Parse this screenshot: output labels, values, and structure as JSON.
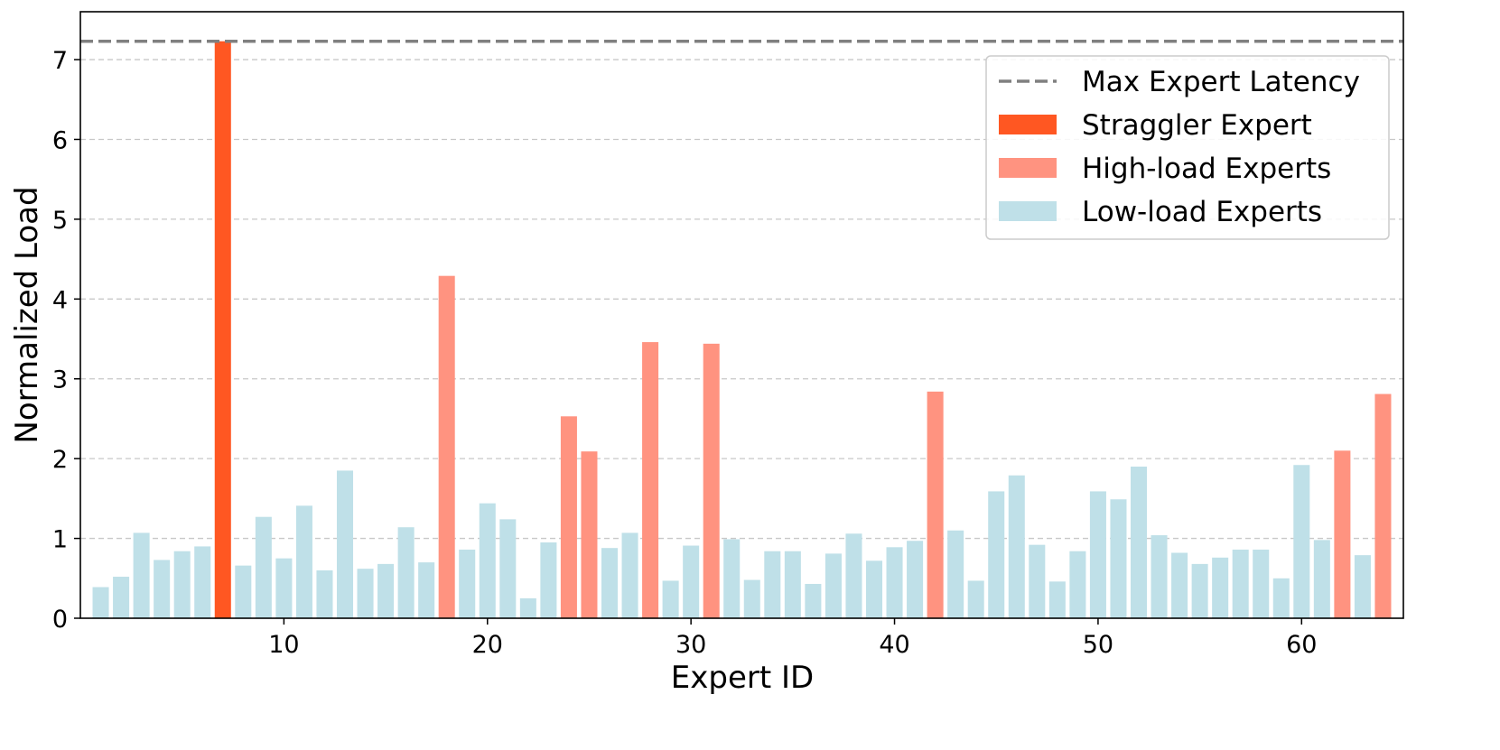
{
  "chart_data": {
    "type": "bar",
    "xlabel": "Expert ID",
    "ylabel": "Normalized Load",
    "xlim": [
      0,
      65
    ],
    "ylim": [
      0,
      7.6
    ],
    "xticks": [
      10,
      20,
      30,
      40,
      50,
      60
    ],
    "yticks": [
      0,
      1,
      2,
      3,
      4,
      5,
      6,
      7
    ],
    "grid": "horizontal dashed",
    "legend_position": "upper right",
    "max_latency": 7.23,
    "colors": {
      "straggler": "#ff5722",
      "high": "#ff9380",
      "low": "#bfe0e8",
      "max_line": "#808080"
    },
    "legend": [
      {
        "label": "Max Expert Latency",
        "kind": "line",
        "group": "max"
      },
      {
        "label": "Straggler Expert",
        "kind": "bar",
        "group": "straggler"
      },
      {
        "label": "High-load Experts",
        "kind": "bar",
        "group": "high"
      },
      {
        "label": "Low-load Experts",
        "kind": "bar",
        "group": "low"
      }
    ],
    "bars": [
      {
        "x": 1,
        "value": 0.39,
        "group": "low"
      },
      {
        "x": 2,
        "value": 0.52,
        "group": "low"
      },
      {
        "x": 3,
        "value": 1.07,
        "group": "low"
      },
      {
        "x": 4,
        "value": 0.73,
        "group": "low"
      },
      {
        "x": 5,
        "value": 0.84,
        "group": "low"
      },
      {
        "x": 6,
        "value": 0.9,
        "group": "low"
      },
      {
        "x": 7,
        "value": 7.23,
        "group": "straggler"
      },
      {
        "x": 8,
        "value": 0.66,
        "group": "low"
      },
      {
        "x": 9,
        "value": 1.27,
        "group": "low"
      },
      {
        "x": 10,
        "value": 0.75,
        "group": "low"
      },
      {
        "x": 11,
        "value": 1.41,
        "group": "low"
      },
      {
        "x": 12,
        "value": 0.6,
        "group": "low"
      },
      {
        "x": 13,
        "value": 1.85,
        "group": "low"
      },
      {
        "x": 14,
        "value": 0.62,
        "group": "low"
      },
      {
        "x": 15,
        "value": 0.68,
        "group": "low"
      },
      {
        "x": 16,
        "value": 1.14,
        "group": "low"
      },
      {
        "x": 17,
        "value": 0.7,
        "group": "low"
      },
      {
        "x": 18,
        "value": 4.29,
        "group": "high"
      },
      {
        "x": 19,
        "value": 0.86,
        "group": "low"
      },
      {
        "x": 20,
        "value": 1.44,
        "group": "low"
      },
      {
        "x": 21,
        "value": 1.24,
        "group": "low"
      },
      {
        "x": 22,
        "value": 0.25,
        "group": "low"
      },
      {
        "x": 23,
        "value": 0.95,
        "group": "low"
      },
      {
        "x": 24,
        "value": 2.53,
        "group": "high"
      },
      {
        "x": 25,
        "value": 2.09,
        "group": "high"
      },
      {
        "x": 26,
        "value": 0.88,
        "group": "low"
      },
      {
        "x": 27,
        "value": 1.07,
        "group": "low"
      },
      {
        "x": 28,
        "value": 3.46,
        "group": "high"
      },
      {
        "x": 29,
        "value": 0.47,
        "group": "low"
      },
      {
        "x": 30,
        "value": 0.91,
        "group": "low"
      },
      {
        "x": 31,
        "value": 3.44,
        "group": "high"
      },
      {
        "x": 32,
        "value": 0.99,
        "group": "low"
      },
      {
        "x": 33,
        "value": 0.48,
        "group": "low"
      },
      {
        "x": 34,
        "value": 0.84,
        "group": "low"
      },
      {
        "x": 35,
        "value": 0.84,
        "group": "low"
      },
      {
        "x": 36,
        "value": 0.43,
        "group": "low"
      },
      {
        "x": 37,
        "value": 0.81,
        "group": "low"
      },
      {
        "x": 38,
        "value": 1.06,
        "group": "low"
      },
      {
        "x": 39,
        "value": 0.72,
        "group": "low"
      },
      {
        "x": 40,
        "value": 0.89,
        "group": "low"
      },
      {
        "x": 41,
        "value": 0.97,
        "group": "low"
      },
      {
        "x": 42,
        "value": 2.84,
        "group": "high"
      },
      {
        "x": 43,
        "value": 1.1,
        "group": "low"
      },
      {
        "x": 44,
        "value": 0.47,
        "group": "low"
      },
      {
        "x": 45,
        "value": 1.59,
        "group": "low"
      },
      {
        "x": 46,
        "value": 1.79,
        "group": "low"
      },
      {
        "x": 47,
        "value": 0.92,
        "group": "low"
      },
      {
        "x": 48,
        "value": 0.46,
        "group": "low"
      },
      {
        "x": 49,
        "value": 0.84,
        "group": "low"
      },
      {
        "x": 50,
        "value": 1.59,
        "group": "low"
      },
      {
        "x": 51,
        "value": 1.49,
        "group": "low"
      },
      {
        "x": 52,
        "value": 1.9,
        "group": "low"
      },
      {
        "x": 53,
        "value": 1.04,
        "group": "low"
      },
      {
        "x": 54,
        "value": 0.82,
        "group": "low"
      },
      {
        "x": 55,
        "value": 0.68,
        "group": "low"
      },
      {
        "x": 56,
        "value": 0.76,
        "group": "low"
      },
      {
        "x": 57,
        "value": 0.86,
        "group": "low"
      },
      {
        "x": 58,
        "value": 0.86,
        "group": "low"
      },
      {
        "x": 59,
        "value": 0.5,
        "group": "low"
      },
      {
        "x": 60,
        "value": 1.92,
        "group": "low"
      },
      {
        "x": 61,
        "value": 0.98,
        "group": "low"
      },
      {
        "x": 62,
        "value": 2.1,
        "group": "high"
      },
      {
        "x": 63,
        "value": 0.79,
        "group": "low"
      },
      {
        "x": 64,
        "value": 2.81,
        "group": "high"
      }
    ]
  }
}
